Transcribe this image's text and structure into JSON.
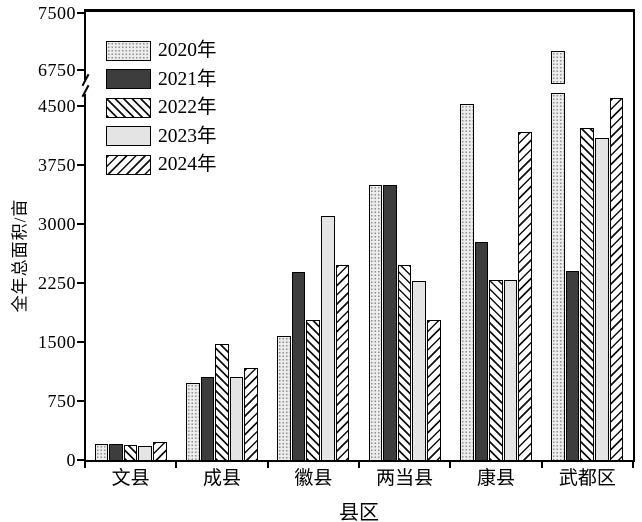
{
  "chart_data": {
    "type": "bar",
    "title": "",
    "xlabel": "县区",
    "ylabel": "全年总面积/亩",
    "categories": [
      "文县",
      "成县",
      "徽县",
      "两当县",
      "康县",
      "武都区"
    ],
    "series": [
      {
        "name": "2020年",
        "pattern": "fine-dots",
        "values": [
          200,
          980,
          1580,
          3500,
          4520,
          7000
        ]
      },
      {
        "name": "2021年",
        "pattern": "solid-dark",
        "values": [
          200,
          1060,
          2390,
          3500,
          2770,
          2400
        ]
      },
      {
        "name": "2022年",
        "pattern": "hatch-back",
        "values": [
          190,
          1480,
          1780,
          2480,
          2290,
          4220
        ]
      },
      {
        "name": "2023年",
        "pattern": "solid-light",
        "values": [
          180,
          1060,
          3100,
          2280,
          2290,
          4090
        ]
      },
      {
        "name": "2024年",
        "pattern": "hatch-fwd",
        "values": [
          230,
          1170,
          2480,
          1780,
          4170,
          4600
        ]
      }
    ],
    "y_axis": {
      "ticks_lower": [
        0,
        750,
        1500,
        2250,
        3000,
        3750,
        4500
      ],
      "ticks_upper": [
        6750,
        7500
      ],
      "break_between": [
        4500,
        6750
      ],
      "ylim": [
        0,
        7500
      ]
    },
    "legend_position": "top-left",
    "grid": false,
    "colors": {
      "bar_dark": "#3d3d3d",
      "bar_light": "#e4e4e4",
      "dot_fill_bg": "#ececec",
      "hatch_line": "#111111",
      "axis": "#000000",
      "background": "#ffffff"
    }
  }
}
